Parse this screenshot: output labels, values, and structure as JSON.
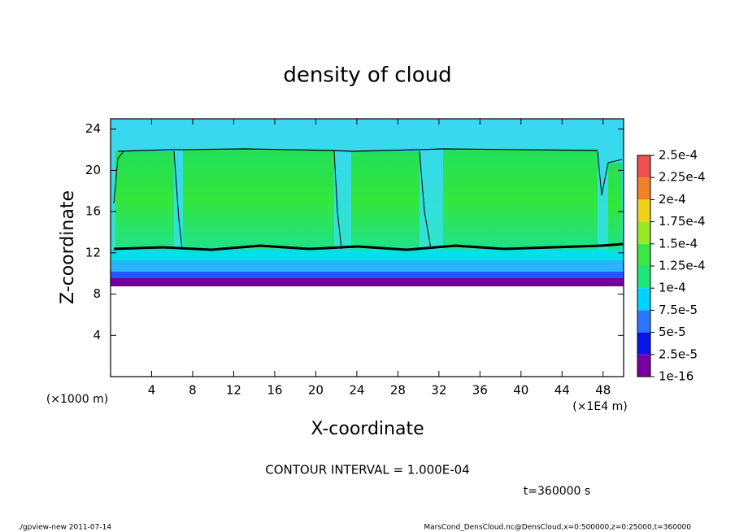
{
  "chart_data": {
    "type": "contour",
    "title": "density of cloud",
    "xlabel": "X-coordinate",
    "ylabel": "Z-coordinate",
    "x_unit_left": "(×1000 m)",
    "x_unit_right": "(×1E4 m)",
    "xlim": [
      0,
      50
    ],
    "xticks": [
      4,
      8,
      12,
      16,
      20,
      24,
      28,
      32,
      36,
      40,
      44,
      48
    ],
    "ylim": [
      0,
      25
    ],
    "yticks": [
      4,
      8,
      12,
      16,
      20,
      24
    ],
    "colorbar": {
      "levels": [
        {
          "value": 1e-16,
          "label": "1e-16"
        },
        {
          "value": 2.5e-05,
          "label": "2.5e-5"
        },
        {
          "value": 5e-05,
          "label": "5e-5"
        },
        {
          "value": 7.5e-05,
          "label": "7.5e-5"
        },
        {
          "value": 0.0001,
          "label": "1e-4"
        },
        {
          "value": 0.000125,
          "label": "1.25e-4"
        },
        {
          "value": 0.00015,
          "label": "1.5e-4"
        },
        {
          "value": 0.000175,
          "label": "1.75e-4"
        },
        {
          "value": 0.0002,
          "label": "2e-4"
        },
        {
          "value": 0.000225,
          "label": "2.25e-4"
        },
        {
          "value": 0.00025,
          "label": "2.5e-4"
        }
      ],
      "colors": [
        "#7800a0",
        "#0a14e6",
        "#2a78ff",
        "#00d2ff",
        "#1ee678",
        "#3ce646",
        "#9be628",
        "#f0d21e",
        "#f08228",
        "#f05050"
      ]
    },
    "contour_interval": "CONTOUR INTERVAL = 1.000E-04",
    "time_label": "t=360000 s",
    "footer_left": "./gpview-new  2011-07-14",
    "footer_right": "MarsCond_DensCloud.nc@DensCloud,x=0:500000,z=0:25000,t=360000"
  }
}
